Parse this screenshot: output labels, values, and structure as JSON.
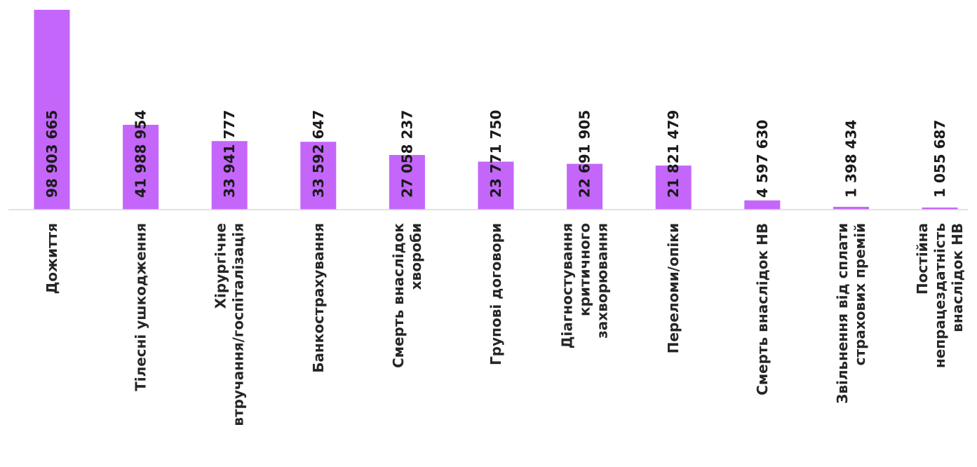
{
  "chart_data": {
    "type": "bar",
    "orientation": "vertical",
    "title": "",
    "xlabel": "",
    "ylabel": "",
    "ylim": [
      0,
      100000000
    ],
    "grid": false,
    "legend": "none",
    "bar_color": "#c466fa",
    "categories": [
      [
        "Дожиття"
      ],
      [
        "Тілесні ушкодження"
      ],
      [
        "Хірургічне",
        "втручання/госпіталізація"
      ],
      [
        "Банкострахування"
      ],
      [
        "Смерть внаслідок",
        "хвороби"
      ],
      [
        "Групові договори"
      ],
      [
        "Діагностування",
        "критичного",
        "захворювання"
      ],
      [
        "Переломи/опіки"
      ],
      [
        "Смерть внаслідок НВ"
      ],
      [
        "Звільнення від сплати",
        "страхових премій"
      ],
      [
        "Постійна",
        "непрацездатність",
        "внаслідок НВ"
      ]
    ],
    "values": [
      98903665,
      41988954,
      33941777,
      33592647,
      27058237,
      23771750,
      22691905,
      21821479,
      4597630,
      1398434,
      1055687
    ],
    "value_labels": [
      "98 903 665",
      "41 988 954",
      "33 941 777",
      "33 592 647",
      "27 058 237",
      "23 771 750",
      "22 691 905",
      "21 821 479",
      "4 597 630",
      "1 398 434",
      "1 055 687"
    ]
  }
}
